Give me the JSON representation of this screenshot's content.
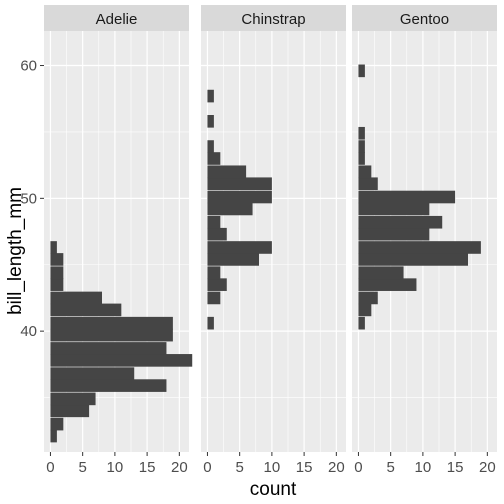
{
  "chart_data": {
    "type": "histogram",
    "orientation": "horizontal",
    "facet_by": "species",
    "xlabel": "count",
    "ylabel": "bill_length_mm",
    "xlim": [
      -1,
      21.5
    ],
    "ylim": [
      30.9,
      62.6
    ],
    "x_ticks": [
      0,
      5,
      10,
      15,
      20
    ],
    "x_tick_labels": [
      "0",
      "5",
      "10",
      "15",
      "20"
    ],
    "y_ticks": [
      40,
      50,
      60
    ],
    "y_tick_labels": [
      "40",
      "50",
      "60"
    ],
    "bin_width": 0.95,
    "grid": true,
    "legend": "none",
    "bar_color": "#454545",
    "panel_background": "#ebebeb",
    "strip_background": "#d9d9d9",
    "facets": [
      {
        "label": "Adelie",
        "bins": [
          {
            "center": 32.1,
            "count": 1
          },
          {
            "center": 33.0,
            "count": 2
          },
          {
            "center": 34.0,
            "count": 6
          },
          {
            "center": 34.9,
            "count": 7
          },
          {
            "center": 35.9,
            "count": 18
          },
          {
            "center": 36.8,
            "count": 13
          },
          {
            "center": 37.8,
            "count": 22
          },
          {
            "center": 38.7,
            "count": 18
          },
          {
            "center": 39.7,
            "count": 19
          },
          {
            "center": 40.6,
            "count": 19
          },
          {
            "center": 41.6,
            "count": 11
          },
          {
            "center": 42.5,
            "count": 8
          },
          {
            "center": 43.5,
            "count": 2
          },
          {
            "center": 44.4,
            "count": 2
          },
          {
            "center": 45.4,
            "count": 2
          },
          {
            "center": 46.3,
            "count": 1
          }
        ]
      },
      {
        "label": "Chinstrap",
        "bins": [
          {
            "center": 40.6,
            "count": 1
          },
          {
            "center": 42.5,
            "count": 2
          },
          {
            "center": 43.5,
            "count": 3
          },
          {
            "center": 44.4,
            "count": 2
          },
          {
            "center": 45.4,
            "count": 8
          },
          {
            "center": 46.3,
            "count": 10
          },
          {
            "center": 47.3,
            "count": 3
          },
          {
            "center": 48.2,
            "count": 2
          },
          {
            "center": 49.2,
            "count": 7
          },
          {
            "center": 50.1,
            "count": 10
          },
          {
            "center": 51.1,
            "count": 10
          },
          {
            "center": 52.0,
            "count": 6
          },
          {
            "center": 53.0,
            "count": 2
          },
          {
            "center": 53.9,
            "count": 1
          },
          {
            "center": 55.8,
            "count": 1
          },
          {
            "center": 57.7,
            "count": 1
          }
        ]
      },
      {
        "label": "Gentoo",
        "bins": [
          {
            "center": 40.6,
            "count": 1
          },
          {
            "center": 41.6,
            "count": 2
          },
          {
            "center": 42.5,
            "count": 3
          },
          {
            "center": 43.5,
            "count": 9
          },
          {
            "center": 44.4,
            "count": 7
          },
          {
            "center": 45.4,
            "count": 17
          },
          {
            "center": 46.3,
            "count": 19
          },
          {
            "center": 47.3,
            "count": 11
          },
          {
            "center": 48.2,
            "count": 13
          },
          {
            "center": 49.2,
            "count": 11
          },
          {
            "center": 50.1,
            "count": 15
          },
          {
            "center": 51.1,
            "count": 3
          },
          {
            "center": 52.0,
            "count": 2
          },
          {
            "center": 53.0,
            "count": 1
          },
          {
            "center": 53.9,
            "count": 1
          },
          {
            "center": 54.9,
            "count": 1
          },
          {
            "center": 59.6,
            "count": 1
          }
        ]
      }
    ]
  }
}
